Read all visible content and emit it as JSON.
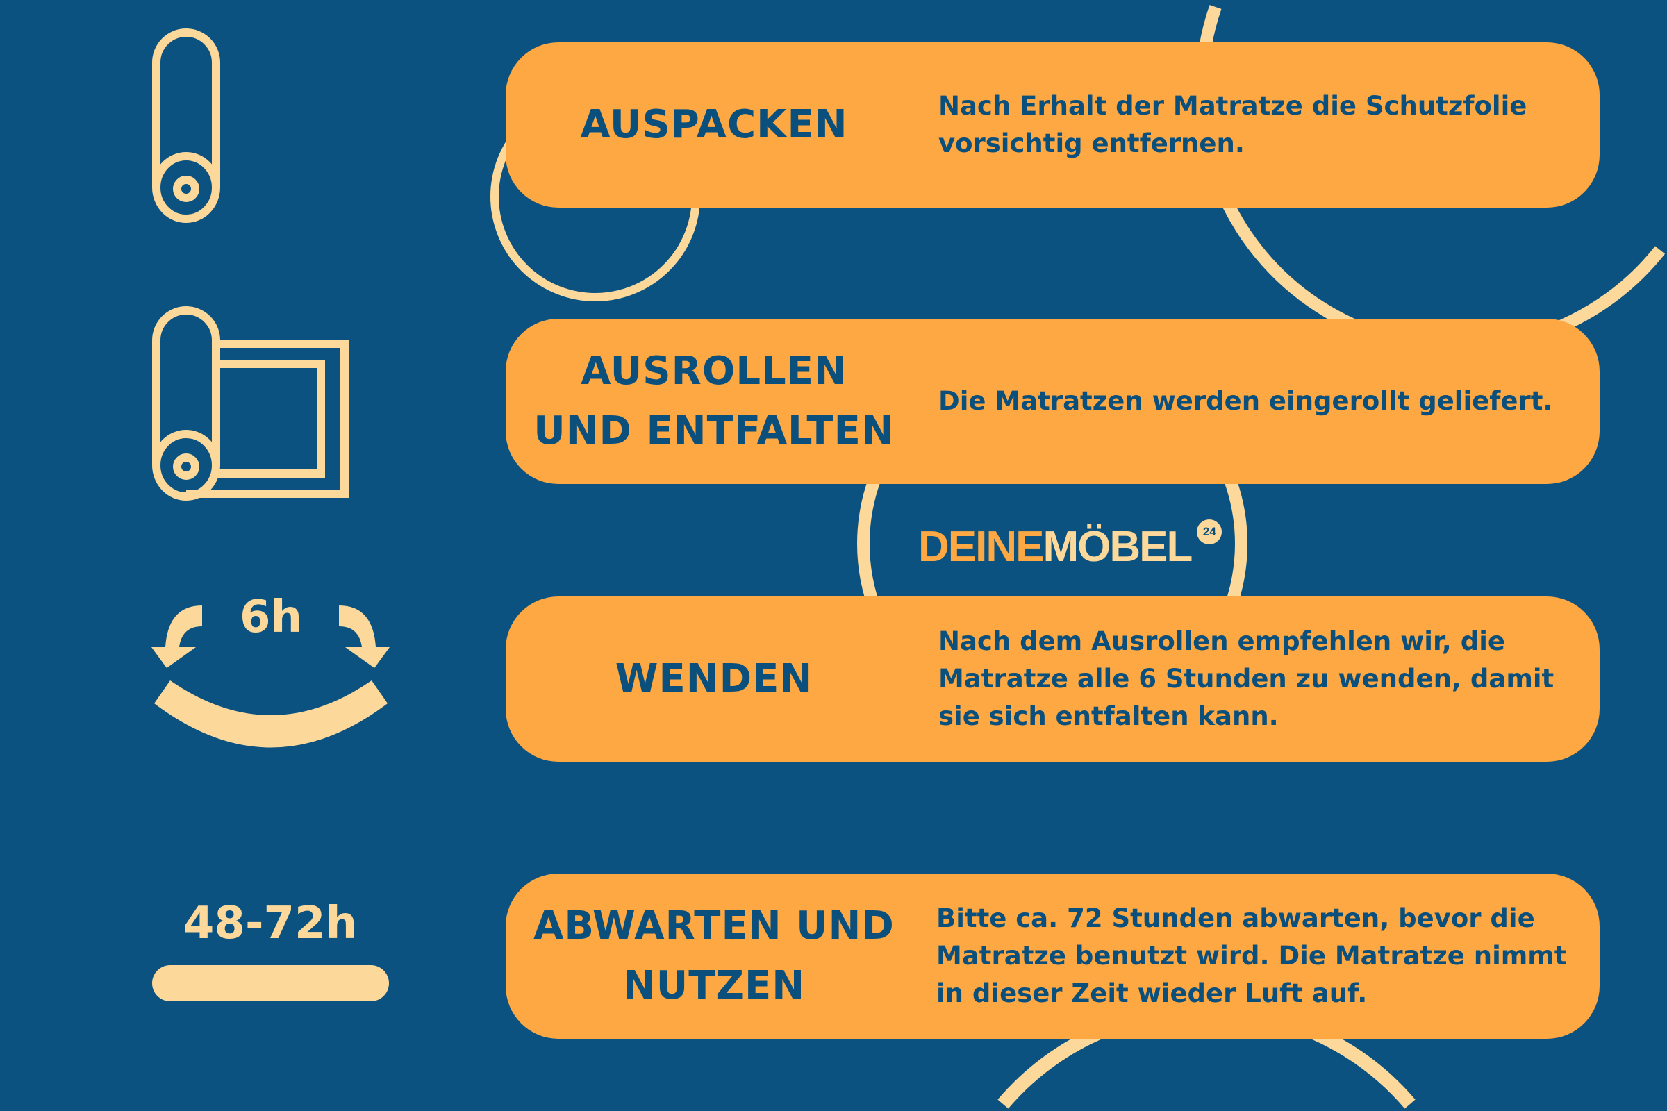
{
  "colors": {
    "background": "#0b5281",
    "card": "#fda842",
    "accent": "#fcd99a",
    "text": "#0b4f7d"
  },
  "logo": {
    "part1": "DEINE",
    "part2": "MÖBEL",
    "badge": "24"
  },
  "steps": [
    {
      "icon": "rolled-mattress-icon",
      "title": "AUSPACKEN",
      "description": "Nach Erhalt der Matratze die Schutzfolie vorsichtig entfernen."
    },
    {
      "icon": "unrolling-mattress-icon",
      "title": "AUSROLLEN UND ENTFALTEN",
      "description": "Die Matratzen werden eingerollt geliefert."
    },
    {
      "icon": "turn-arrows-icon",
      "icon_label": "6h",
      "title": "WENDEN",
      "description": "Nach dem Ausrollen empfehlen wir, die Matratze alle 6 Stunden zu wenden, damit sie sich entfalten kann."
    },
    {
      "icon": "flat-mattress-icon",
      "icon_label": "48-72h",
      "title": "ABWARTEN UND NUTZEN",
      "description": "Bitte ca. 72 Stunden abwarten, bevor die Matratze benutzt wird. Die Matratze nimmt in dieser Zeit wieder Luft auf."
    }
  ]
}
